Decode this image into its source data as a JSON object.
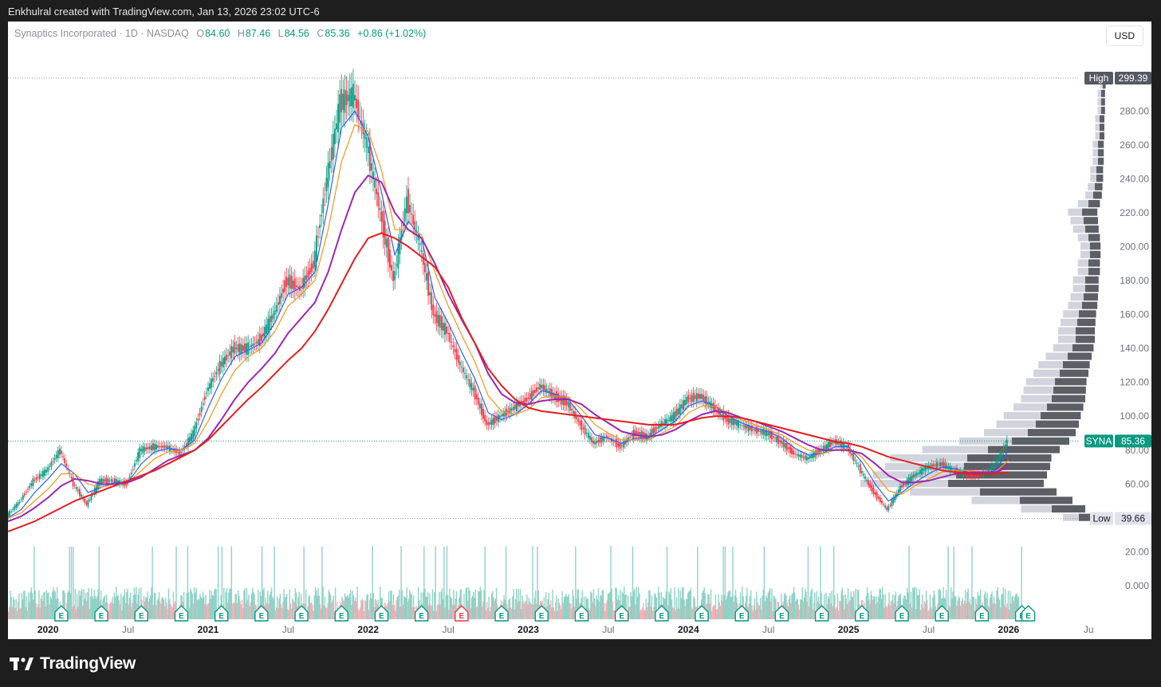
{
  "caption": "Enkhulral created with TradingView.com, Jan 13, 2026 23:02 UTC-6",
  "legend": {
    "symbol": "Synaptics Incorporated · 1D · NASDAQ",
    "open_label": "O",
    "open": "84.60",
    "high_label": "H",
    "high": "87.46",
    "low_label": "L",
    "low": "84.56",
    "close_label": "C",
    "close": "85.36",
    "change": "+0.86 (+1.02%)"
  },
  "currency_button": "USD",
  "footer_brand": "TradingView",
  "colors": {
    "up": "#089981",
    "down": "#f23645",
    "ma_fast": "#2962ff",
    "ma_orange": "#f7931a",
    "ma_purple": "#9c27b0",
    "ma_red": "#e01f1f",
    "volume_profile": "#5d5f66",
    "volume_profile_light": "#d1d4dc",
    "earnings_icon": "#089981"
  },
  "icons": [
    "tradingview-logo-icon",
    "earnings-icon"
  ],
  "chart_data": {
    "type": "candlestick",
    "title": "Synaptics Incorporated · 1D · NASDAQ",
    "ylim": [
      -5,
      310
    ],
    "y_ticks": [
      "0.000",
      "20.00",
      "40.00",
      "60.00",
      "80.00",
      "100.00",
      "120.00",
      "140.00",
      "160.00",
      "180.00",
      "200.00",
      "220.00",
      "240.00",
      "260.00",
      "280.00"
    ],
    "x_ticks": [
      "2020",
      "Jul",
      "2021",
      "Jul",
      "2022",
      "Jul",
      "2023",
      "Jul",
      "2024",
      "Jul",
      "2025",
      "Jul",
      "2026",
      "Ju"
    ],
    "x_tick_dates": [
      "2020-01",
      "2020-07",
      "2021-01",
      "2021-07",
      "2022-01",
      "2022-07",
      "2023-01",
      "2023-07",
      "2024-01",
      "2024-07",
      "2025-01",
      "2025-07",
      "2026-01",
      "2026-07"
    ],
    "xlim": [
      "2019-10",
      "2026-08"
    ],
    "price_series": {
      "name": "SYNA",
      "dates": [
        "2019-10",
        "2019-11",
        "2019-12",
        "2020-01",
        "2020-02",
        "2020-03",
        "2020-04",
        "2020-05",
        "2020-06",
        "2020-07",
        "2020-08",
        "2020-09",
        "2020-10",
        "2020-11",
        "2020-12",
        "2021-01",
        "2021-02",
        "2021-03",
        "2021-04",
        "2021-05",
        "2021-06",
        "2021-07",
        "2021-08",
        "2021-09",
        "2021-10",
        "2021-11",
        "2021-12",
        "2022-01",
        "2022-02",
        "2022-03",
        "2022-04",
        "2022-05",
        "2022-06",
        "2022-07",
        "2022-08",
        "2022-09",
        "2022-10",
        "2022-11",
        "2022-12",
        "2023-01",
        "2023-02",
        "2023-03",
        "2023-04",
        "2023-05",
        "2023-06",
        "2023-07",
        "2023-08",
        "2023-09",
        "2023-10",
        "2023-11",
        "2023-12",
        "2024-01",
        "2024-02",
        "2024-03",
        "2024-04",
        "2024-05",
        "2024-06",
        "2024-07",
        "2024-08",
        "2024-09",
        "2024-10",
        "2024-11",
        "2024-12",
        "2025-01",
        "2025-02",
        "2025-03",
        "2025-04",
        "2025-05",
        "2025-06",
        "2025-07",
        "2025-08",
        "2025-09",
        "2025-10",
        "2025-11",
        "2025-12",
        "2026-01"
      ],
      "close": [
        41,
        50,
        62,
        68,
        80,
        60,
        48,
        62,
        62,
        60,
        80,
        82,
        82,
        78,
        90,
        115,
        130,
        140,
        140,
        145,
        160,
        180,
        175,
        190,
        240,
        285,
        290,
        260,
        220,
        180,
        228,
        200,
        160,
        150,
        130,
        115,
        95,
        100,
        105,
        110,
        118,
        112,
        108,
        95,
        84,
        88,
        82,
        90,
        88,
        95,
        100,
        110,
        112,
        105,
        98,
        95,
        92,
        90,
        85,
        78,
        75,
        80,
        85,
        82,
        68,
        55,
        45,
        58,
        65,
        70,
        72,
        68,
        65,
        66,
        70,
        85.36
      ]
    },
    "moving_averages": [
      {
        "color": "#2962ff",
        "values": [
          40,
          45,
          55,
          63,
          72,
          66,
          55,
          58,
          61,
          61,
          72,
          79,
          81,
          80,
          86,
          105,
          122,
          135,
          139,
          143,
          155,
          172,
          176,
          185,
          225,
          270,
          280,
          265,
          232,
          195,
          215,
          205,
          170,
          155,
          138,
          122,
          102,
          98,
          101,
          107,
          115,
          113,
          110,
          100,
          89,
          87,
          84,
          87,
          87,
          92,
          97,
          106,
          109,
          106,
          100,
          96,
          93,
          91,
          87,
          81,
          77,
          78,
          82,
          82,
          73,
          60,
          50,
          55,
          61,
          66,
          70,
          69,
          67,
          66,
          68,
          80
        ]
      },
      {
        "color": "#f7931a",
        "values": [
          40,
          43,
          50,
          57,
          66,
          66,
          60,
          58,
          60,
          61,
          68,
          75,
          79,
          80,
          84,
          97,
          113,
          127,
          135,
          140,
          150,
          165,
          172,
          180,
          210,
          250,
          272,
          268,
          245,
          210,
          210,
          207,
          185,
          165,
          148,
          132,
          112,
          103,
          101,
          104,
          111,
          112,
          111,
          104,
          95,
          90,
          86,
          86,
          86,
          90,
          94,
          102,
          106,
          106,
          102,
          98,
          95,
          92,
          89,
          84,
          80,
          78,
          80,
          81,
          76,
          66,
          56,
          54,
          59,
          63,
          67,
          68,
          68,
          67,
          67,
          74
        ]
      },
      {
        "color": "#9c27b0",
        "values": [
          38,
          41,
          46,
          52,
          59,
          63,
          62,
          60,
          60,
          61,
          64,
          69,
          74,
          77,
          80,
          87,
          98,
          110,
          120,
          128,
          137,
          149,
          158,
          167,
          185,
          210,
          232,
          242,
          238,
          220,
          210,
          205,
          190,
          172,
          157,
          143,
          125,
          113,
          108,
          107,
          109,
          110,
          110,
          107,
          101,
          96,
          91,
          89,
          88,
          89,
          92,
          97,
          101,
          103,
          102,
          99,
          97,
          94,
          91,
          87,
          83,
          80,
          80,
          80,
          78,
          72,
          65,
          61,
          61,
          62,
          64,
          66,
          67,
          67,
          67,
          70
        ]
      },
      {
        "color": "#e01f1f",
        "values": [
          32,
          35,
          38,
          42,
          46,
          50,
          53,
          56,
          59,
          62,
          65,
          68,
          72,
          76,
          80,
          86,
          94,
          102,
          110,
          117,
          125,
          133,
          140,
          150,
          163,
          178,
          193,
          205,
          208,
          205,
          200,
          194,
          188,
          176,
          158,
          143,
          128,
          118,
          110,
          105,
          103,
          102,
          101,
          100,
          99,
          98,
          97,
          96,
          95,
          95,
          95,
          97,
          99,
          100,
          100,
          99,
          97,
          95,
          93,
          91,
          89,
          87,
          85,
          84,
          82,
          79,
          76,
          74,
          72,
          70,
          68,
          67,
          66,
          66,
          66,
          67
        ]
      }
    ],
    "price_labels": {
      "high_label": "High",
      "high": "299.39",
      "low_label": "Low",
      "low": "39.66",
      "last_label": "SYNA",
      "last": "85.36"
    },
    "volume_profile": {
      "price_levels": [
        40,
        45,
        50,
        55,
        60,
        65,
        70,
        75,
        80,
        85,
        90,
        95,
        100,
        105,
        110,
        115,
        120,
        125,
        130,
        135,
        140,
        145,
        150,
        155,
        160,
        165,
        170,
        175,
        180,
        185,
        190,
        195,
        200,
        205,
        210,
        215,
        220,
        225,
        230,
        235,
        240,
        245,
        250,
        255,
        260,
        265,
        270,
        275,
        280,
        285,
        290,
        295
      ],
      "relative_volume": [
        0.18,
        0.35,
        0.55,
        0.8,
        1.0,
        0.95,
        0.9,
        0.88,
        0.75,
        0.6,
        0.5,
        0.45,
        0.42,
        0.38,
        0.35,
        0.34,
        0.33,
        0.3,
        0.28,
        0.25,
        0.22,
        0.2,
        0.2,
        0.19,
        0.18,
        0.16,
        0.15,
        0.14,
        0.14,
        0.12,
        0.12,
        0.11,
        0.11,
        0.12,
        0.14,
        0.15,
        0.16,
        0.12,
        0.09,
        0.08,
        0.07,
        0.07,
        0.06,
        0.06,
        0.06,
        0.05,
        0.05,
        0.05,
        0.04,
        0.04,
        0.04,
        0.03
      ]
    },
    "earnings_markers": [
      "E",
      "E",
      "E",
      "E",
      "E",
      "E",
      "E",
      "E",
      "E",
      "E",
      "E",
      "E",
      "E",
      "E",
      "E",
      "E",
      "E",
      "E",
      "E",
      "E",
      "E",
      "E",
      "E",
      "E",
      "E",
      "E"
    ],
    "earnings_dates": [
      "2020-02",
      "2020-05",
      "2020-08",
      "2020-11",
      "2021-02",
      "2021-05",
      "2021-08",
      "2021-11",
      "2022-02",
      "2022-05",
      "2022-08",
      "2022-11",
      "2023-02",
      "2023-05",
      "2023-08",
      "2023-11",
      "2024-02",
      "2024-05",
      "2024-08",
      "2024-11",
      "2025-02",
      "2025-05",
      "2025-08",
      "2025-11",
      "2026-02",
      "2026-02"
    ],
    "grid": false,
    "legend_position": "top-left"
  }
}
